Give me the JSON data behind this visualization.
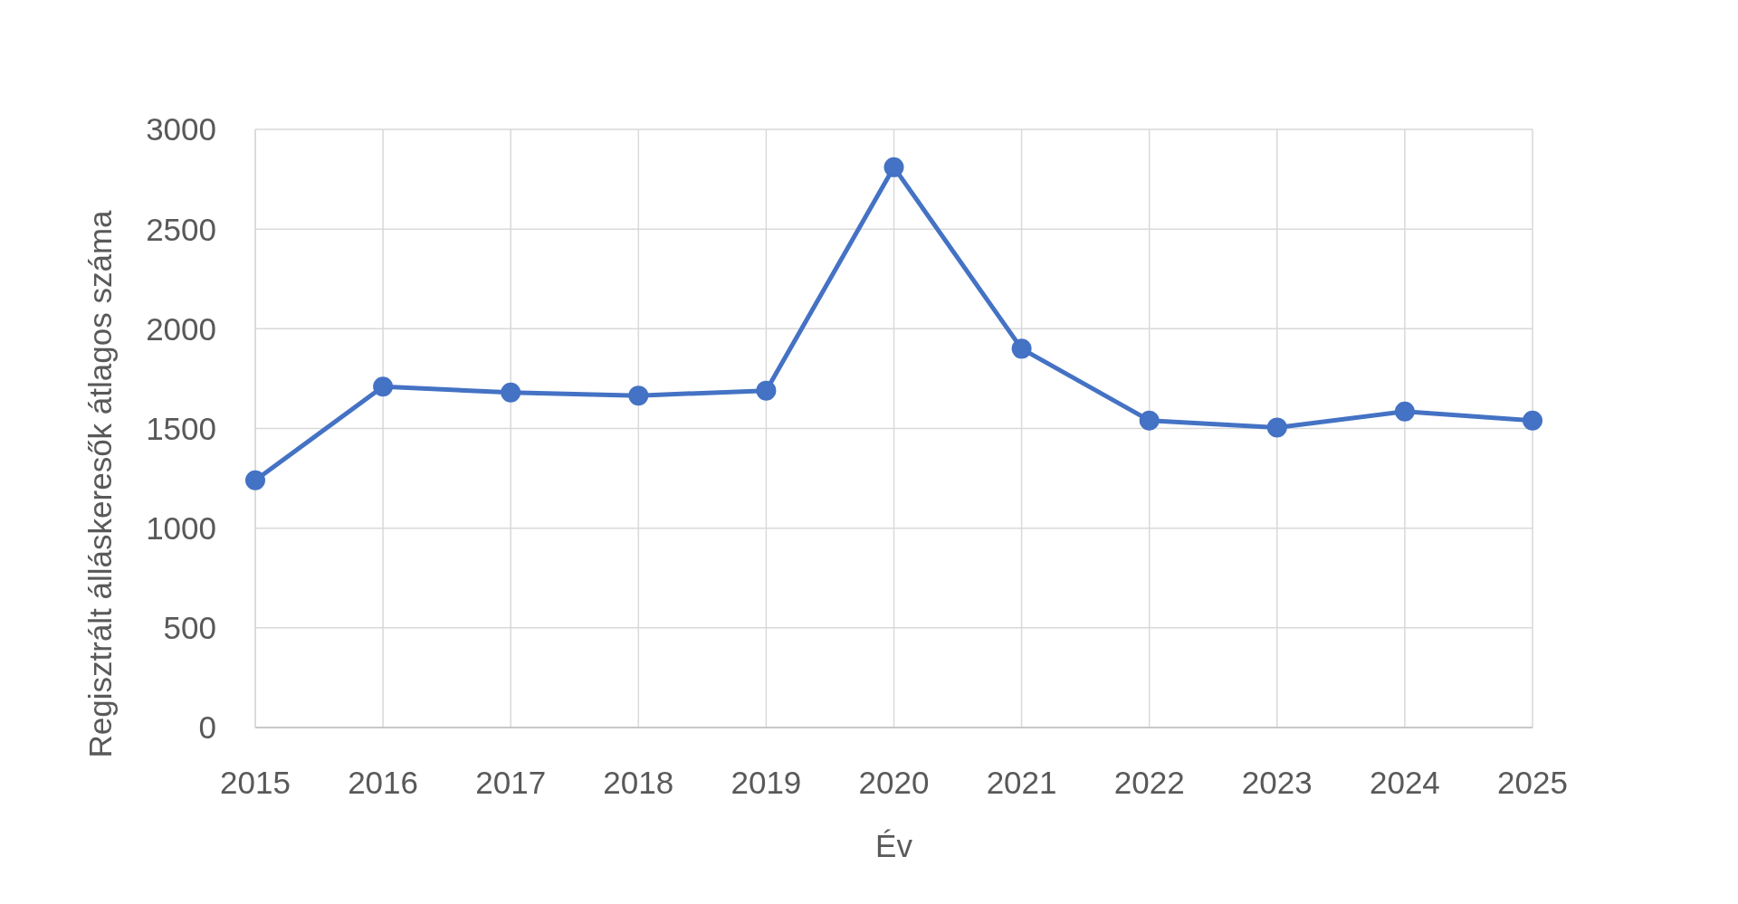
{
  "chart_data": {
    "type": "line",
    "xlabel": "Év",
    "ylabel": "Regisztrált álláskeresők átlagos száma",
    "x": [
      2015,
      2016,
      2017,
      2018,
      2019,
      2020,
      2021,
      2022,
      2023,
      2024,
      2025
    ],
    "series": [
      {
        "color": "#4472c4",
        "values": [
          1240,
          1710,
          1680,
          1665,
          1690,
          2810,
          1900,
          1540,
          1505,
          1585,
          1540
        ]
      }
    ],
    "xlim": [
      2015,
      2025
    ],
    "xticks": [
      2015,
      2016,
      2017,
      2018,
      2019,
      2020,
      2021,
      2022,
      2023,
      2024,
      2025
    ],
    "ylim": [
      0,
      3000
    ],
    "yticks": [
      0,
      500,
      1000,
      1500,
      2000,
      2500,
      3000
    ],
    "grid": true,
    "marker": "circle",
    "line_style": "solid"
  }
}
